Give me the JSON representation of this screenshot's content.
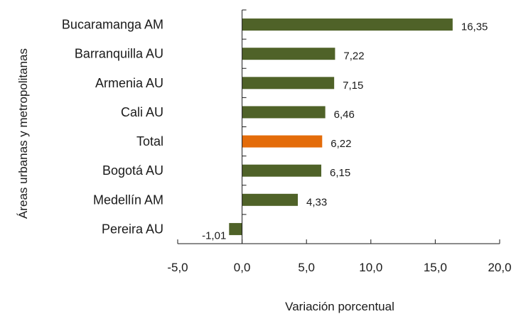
{
  "chart_data": {
    "type": "bar",
    "orientation": "horizontal",
    "categories": [
      "Bucaramanga AM",
      "Barranquilla AU",
      "Armenia AU",
      "Cali AU",
      "Total",
      "Bogotá AU",
      "Medellín AM",
      "Pereira AU"
    ],
    "values": [
      16.35,
      7.22,
      7.15,
      6.46,
      6.22,
      6.15,
      4.33,
      -1.01
    ],
    "value_labels": [
      "16,35",
      "7,22",
      "7,15",
      "6,46",
      "6,22",
      "6,15",
      "4,33",
      "-1,01"
    ],
    "highlight_category": "Total",
    "xlabel": "Variación porcentual",
    "ylabel": "Áreas urbanas y metropolitanas",
    "xlim": [
      -5,
      20
    ],
    "xticks": [
      -5,
      0,
      5,
      10,
      15,
      20
    ],
    "xtick_labels": [
      "-5,0",
      "0,0",
      "5,0",
      "10,0",
      "15,0",
      "20,0"
    ],
    "grid": false,
    "legend": "none",
    "colors": {
      "bar": "#4f6228",
      "highlight": "#e46c0a",
      "axis": "#1a1a1a"
    }
  }
}
